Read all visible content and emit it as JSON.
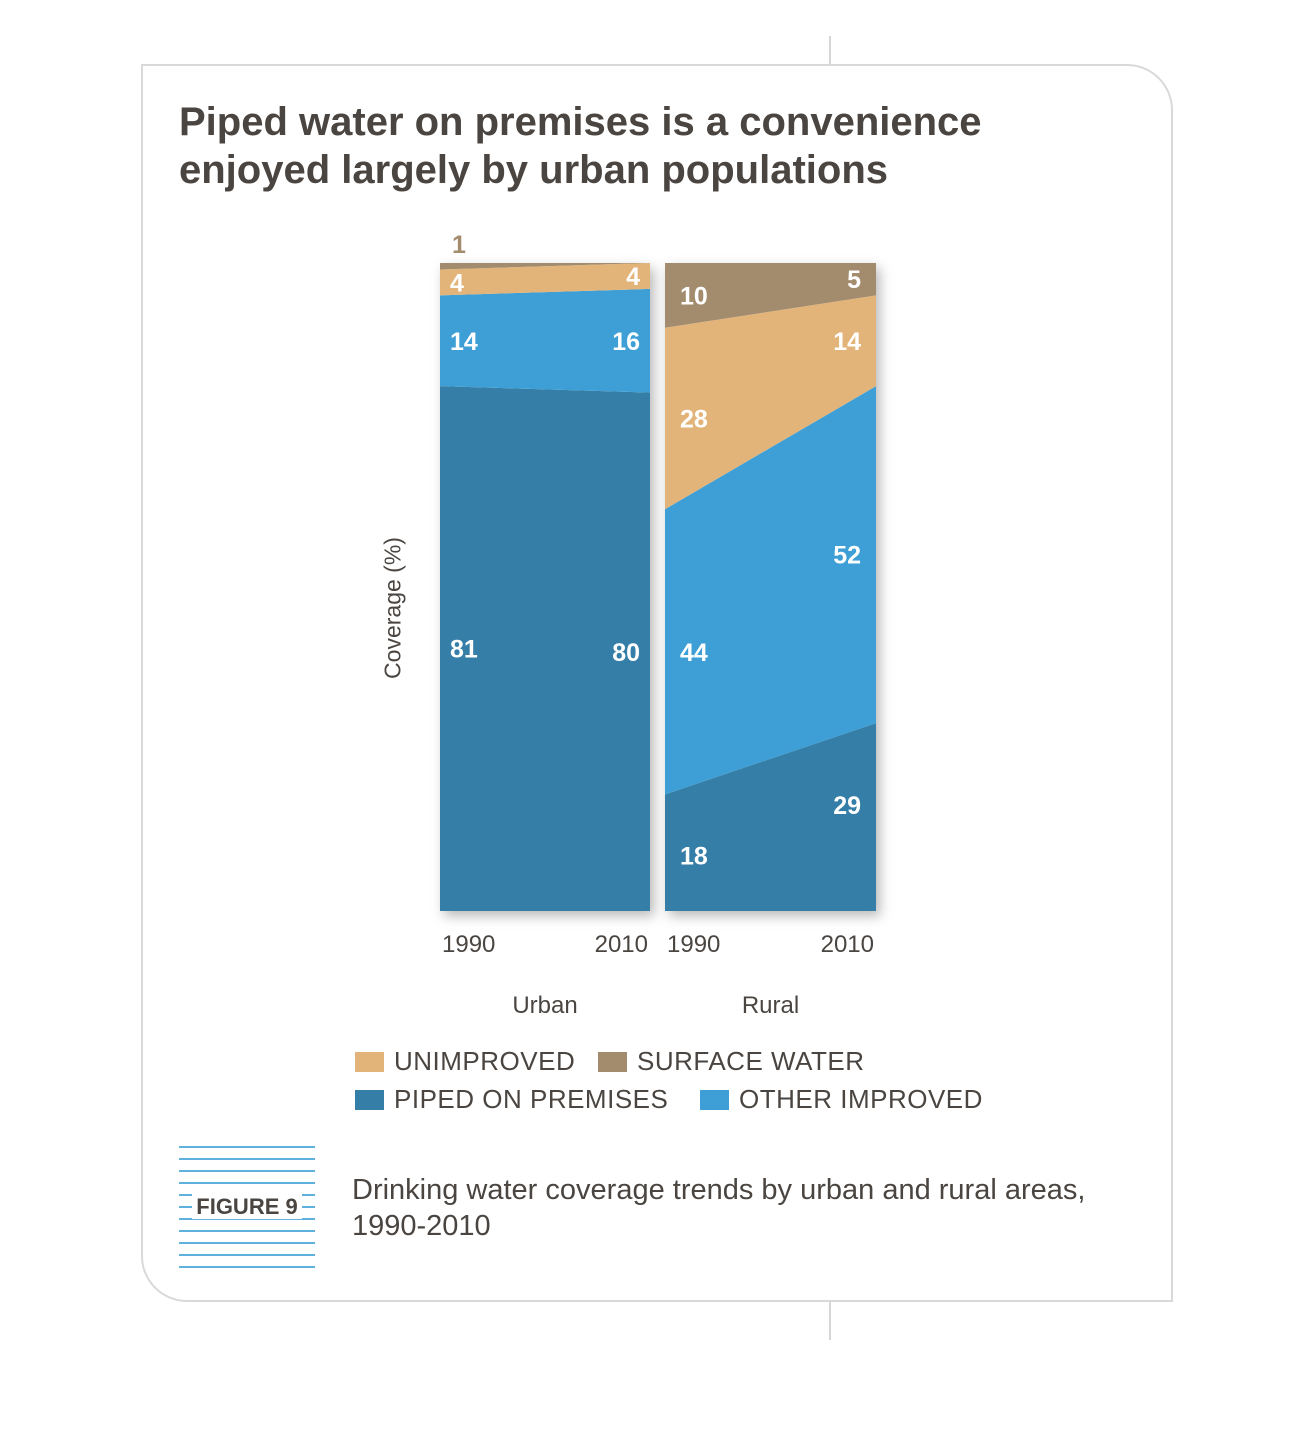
{
  "title": "Piped water on premises is a convenience enjoyed largely by urban populations",
  "figure_label": "FIGURE 9",
  "caption": "Drinking water coverage trends by urban and rural areas, 1990-2010",
  "colors": {
    "piped": "#357ea7",
    "other_improved": "#3d9fd5",
    "unimproved": "#e3b47a",
    "surface_water": "#a38c6d",
    "text": "#4a4540"
  },
  "legend": [
    {
      "label": "UNIMPROVED",
      "color": "#e3b47a"
    },
    {
      "label": "SURFACE WATER",
      "color": "#a38c6d"
    },
    {
      "label": "PIPED ON PREMISES",
      "color": "#357ea7"
    },
    {
      "label": "OTHER IMPROVED",
      "color": "#3d9fd5"
    }
  ],
  "chart_data": {
    "type": "area",
    "ylabel": "Coverage (%)",
    "ylim": [
      0,
      100
    ],
    "grid": false,
    "legend_position": "bottom",
    "panels": [
      {
        "name": "Urban",
        "x": [
          "1990",
          "2010"
        ],
        "series": [
          {
            "name": "PIPED ON PREMISES",
            "values": [
              81,
              80
            ]
          },
          {
            "name": "OTHER IMPROVED",
            "values": [
              14,
              16
            ]
          },
          {
            "name": "UNIMPROVED",
            "values": [
              4,
              4
            ]
          },
          {
            "name": "SURFACE WATER",
            "values": [
              1,
              0
            ]
          }
        ]
      },
      {
        "name": "Rural",
        "x": [
          "1990",
          "2010"
        ],
        "series": [
          {
            "name": "PIPED ON PREMISES",
            "values": [
              18,
              29
            ]
          },
          {
            "name": "OTHER IMPROVED",
            "values": [
              44,
              52
            ]
          },
          {
            "name": "UNIMPROVED",
            "values": [
              28,
              14
            ]
          },
          {
            "name": "SURFACE WATER",
            "values": [
              10,
              5
            ]
          }
        ]
      }
    ]
  }
}
